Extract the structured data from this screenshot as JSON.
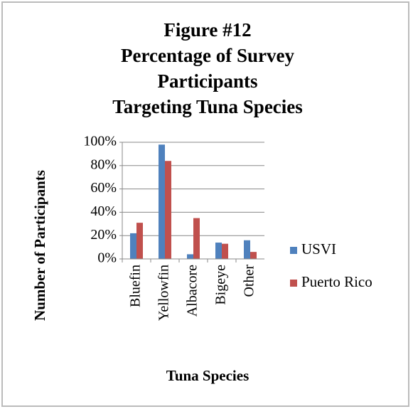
{
  "chart_data": {
    "type": "bar",
    "title": [
      "Figure #12",
      "Percentage of Survey",
      "Participants",
      "Targeting Tuna Species"
    ],
    "x_label": "Tuna Species",
    "y_label": "Number of Participants",
    "categories": [
      "Bluefin",
      "Yellowfin",
      "Albacore",
      "Bigeye",
      "Other"
    ],
    "series": [
      {
        "name": "USVI",
        "color": "#4f81bd",
        "values": [
          22,
          98,
          4,
          14,
          16
        ]
      },
      {
        "name": "Puerto Rico",
        "color": "#c0504d",
        "values": [
          31,
          84,
          35,
          13,
          6
        ]
      }
    ],
    "ylim": [
      0,
      100
    ],
    "yticks": [
      {
        "value": 0,
        "label": "0%"
      },
      {
        "value": 20,
        "label": "20%"
      },
      {
        "value": 40,
        "label": "40%"
      },
      {
        "value": 60,
        "label": "60%"
      },
      {
        "value": 80,
        "label": "80%"
      },
      {
        "value": 100,
        "label": "100%"
      }
    ],
    "grid": true,
    "legend": "right"
  }
}
